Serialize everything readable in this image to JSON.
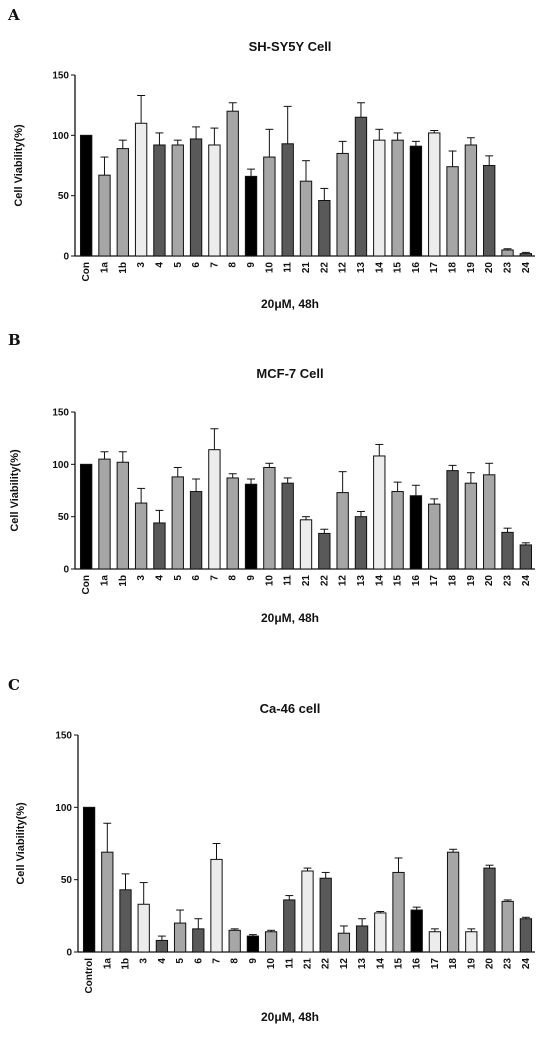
{
  "colors": {
    "black": "#000000",
    "dark": "#595959",
    "mid": "#a6a6a6",
    "light": "#ececec"
  },
  "chart_data": [
    {
      "type": "bar",
      "panel": "A",
      "title": "SH-SY5Y Cell",
      "ylabel": "Cell Viability(%)",
      "xlabel": "20μM,  48h",
      "ylim": [
        0,
        150
      ],
      "yticks": [
        "0",
        "50",
        "100",
        "150"
      ],
      "categories": [
        "Con",
        "1a",
        "1b",
        "3",
        "4",
        "5",
        "6",
        "7",
        "8",
        "9",
        "10",
        "11",
        "21",
        "22",
        "12",
        "13",
        "14",
        "15",
        "16",
        "17",
        "18",
        "19",
        "20",
        "23",
        "24"
      ],
      "values": [
        100,
        67,
        89,
        110,
        92,
        92,
        97,
        92,
        120,
        66,
        82,
        93,
        62,
        46,
        85,
        115,
        96,
        96,
        91,
        102,
        74,
        92,
        75,
        5,
        2
      ],
      "errors": [
        0,
        15,
        7,
        23,
        10,
        4,
        10,
        14,
        7,
        6,
        23,
        31,
        17,
        10,
        10,
        12,
        9,
        6,
        4,
        2,
        13,
        6,
        8,
        1,
        1
      ],
      "bar_colors": [
        "black",
        "mid",
        "mid",
        "light",
        "dark",
        "mid",
        "dark",
        "light",
        "mid",
        "black",
        "mid",
        "dark",
        "mid",
        "dark",
        "mid",
        "dark",
        "light",
        "mid",
        "black",
        "light",
        "mid",
        "mid",
        "dark",
        "mid",
        "dark"
      ]
    },
    {
      "type": "bar",
      "panel": "B",
      "title": "MCF-7 Cell",
      "ylabel": "Cell Viability(%)",
      "xlabel": "20μM,  48h",
      "ylim": [
        0,
        150
      ],
      "yticks": [
        "0",
        "50",
        "100",
        "150"
      ],
      "categories": [
        "Con",
        "1a",
        "1b",
        "3",
        "4",
        "5",
        "6",
        "7",
        "8",
        "9",
        "10",
        "11",
        "21",
        "22",
        "12",
        "13",
        "14",
        "15",
        "16",
        "17",
        "18",
        "19",
        "20",
        "23",
        "24"
      ],
      "values": [
        100,
        105,
        102,
        63,
        44,
        88,
        74,
        114,
        87,
        81,
        97,
        82,
        47,
        34,
        73,
        50,
        108,
        74,
        70,
        62,
        94,
        82,
        90,
        35,
        23
      ],
      "errors": [
        0,
        7,
        10,
        14,
        12,
        9,
        12,
        20,
        4,
        5,
        4,
        5,
        3,
        4,
        20,
        5,
        11,
        9,
        10,
        5,
        5,
        10,
        11,
        4,
        2
      ],
      "bar_colors": [
        "black",
        "mid",
        "mid",
        "mid",
        "dark",
        "mid",
        "dark",
        "light",
        "mid",
        "black",
        "mid",
        "dark",
        "light",
        "dark",
        "mid",
        "dark",
        "light",
        "mid",
        "black",
        "mid",
        "dark",
        "mid",
        "mid",
        "dark",
        "dark"
      ]
    },
    {
      "type": "bar",
      "panel": "C",
      "title": "Ca-46 cell",
      "ylabel": "Cell Viability(%)",
      "xlabel": "20μM,  48h",
      "ylim": [
        0,
        150
      ],
      "yticks": [
        "0",
        "50",
        "100",
        "150"
      ],
      "categories": [
        "Control",
        "1a",
        "1b",
        "3",
        "4",
        "5",
        "6",
        "7",
        "8",
        "9",
        "10",
        "11",
        "21",
        "22",
        "12",
        "13",
        "14",
        "15",
        "16",
        "17",
        "18",
        "19",
        "20",
        "23",
        "24"
      ],
      "values": [
        100,
        69,
        43,
        33,
        8,
        20,
        16,
        64,
        15,
        11,
        14,
        36,
        56,
        51,
        13,
        18,
        27,
        55,
        29,
        14,
        69,
        14,
        58,
        35,
        23
      ],
      "errors": [
        0,
        20,
        11,
        15,
        3,
        9,
        7,
        11,
        1,
        1,
        1,
        3,
        2,
        4,
        5,
        5,
        1,
        10,
        2,
        2,
        2,
        2,
        2,
        1,
        1
      ],
      "bar_colors": [
        "black",
        "mid",
        "dark",
        "light",
        "dark",
        "mid",
        "dark",
        "light",
        "mid",
        "black",
        "mid",
        "dark",
        "light",
        "dark",
        "mid",
        "dark",
        "light",
        "mid",
        "black",
        "light",
        "mid",
        "light",
        "dark",
        "mid",
        "dark"
      ]
    }
  ]
}
